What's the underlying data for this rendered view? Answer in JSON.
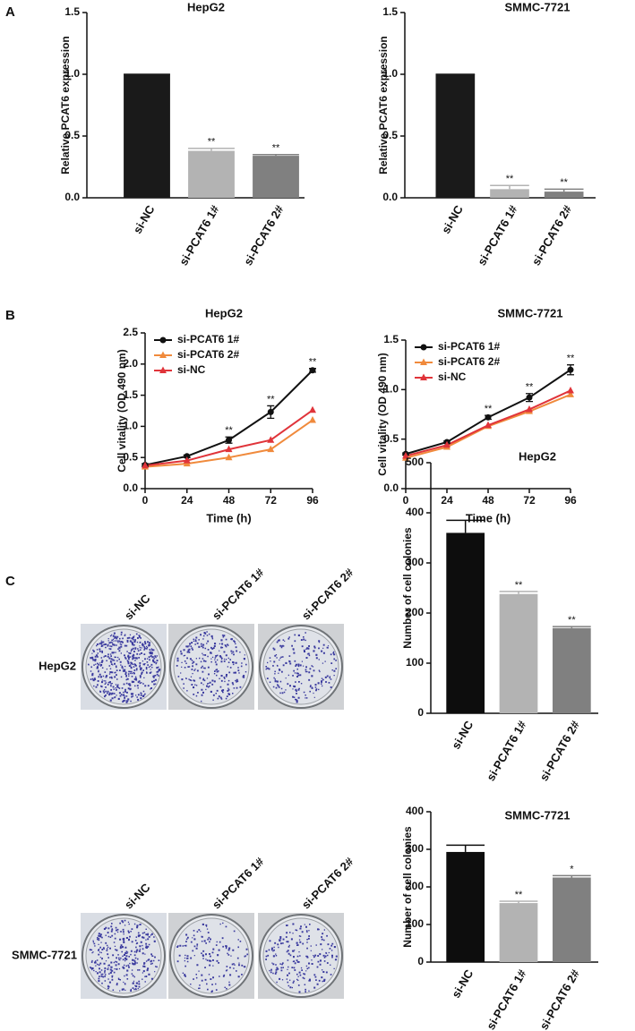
{
  "panel_labels": [
    "A",
    "B",
    "C"
  ],
  "plates": {
    "columns": [
      "si-NC",
      "si-PCAT6 1#",
      "si-PCAT6 2#"
    ],
    "rows": [
      "HepG2",
      "SMMC-7721"
    ]
  },
  "chart_data": [
    {
      "type": "bar",
      "title": "HepG2",
      "y_label": "Relative PCAT6 expression",
      "categories": [
        "si-NC",
        "si-PCAT6 1#",
        "si-PCAT6 2#"
      ],
      "values": [
        1,
        0.38,
        0.34
      ],
      "errors": [
        0,
        0.02,
        0.01
      ],
      "colors": [
        "#1a1a1a",
        "#b3b3b3",
        "#808080"
      ],
      "annotations": [
        null,
        "**",
        "**"
      ],
      "ylim": [
        0,
        1.5
      ],
      "yticks": [
        {
          "value": 0,
          "label": "0.0"
        },
        0.5,
        {
          "value": 1,
          "label": "1.0"
        },
        1.5
      ]
    },
    {
      "type": "bar",
      "title": "SMMC-7721",
      "y_label": "Relative PCAT6 expression",
      "categories": [
        "si-NC",
        "si-PCAT6 1#",
        "si-PCAT6 2#"
      ],
      "values": [
        1,
        0.07,
        0.05
      ],
      "errors": [
        0,
        0.03,
        0.02
      ],
      "colors": [
        "#1a1a1a",
        "#b3b3b3",
        "#808080"
      ],
      "annotations": [
        null,
        "**",
        "**"
      ],
      "ylim": [
        0,
        1.5
      ],
      "yticks": [
        {
          "value": 0,
          "label": "0.0"
        },
        0.5,
        {
          "value": 1,
          "label": "1.0"
        },
        1.5
      ]
    },
    {
      "type": "line",
      "title": "HepG2",
      "x_label": "Time (h)",
      "y_label": "Cell vitality (OD 490 nm)",
      "x": [
        0,
        24,
        48,
        72,
        96
      ],
      "legend": "upper left",
      "series": [
        {
          "name": "si-PCAT6 1#",
          "color": "#111111",
          "marker": "circle",
          "values": [
            0.38,
            0.52,
            0.78,
            1.23,
            1.9
          ],
          "errors": [
            0.02,
            0.02,
            0.05,
            0.1,
            0.03
          ]
        },
        {
          "name": "si-PCAT6 2#",
          "color": "#f08a3c",
          "marker": "triangle",
          "values": [
            0.35,
            0.4,
            0.5,
            0.63,
            1.1
          ]
        },
        {
          "name": "si-NC",
          "color": "#e0343a",
          "marker": "triangle",
          "values": [
            0.37,
            0.45,
            0.63,
            0.78,
            1.26
          ]
        }
      ],
      "annotations": [
        null,
        null,
        "**",
        "**",
        "**"
      ],
      "xlim": [
        0,
        96
      ],
      "xticks": [
        0,
        24,
        48,
        72,
        96
      ],
      "ylim": [
        0,
        2.5
      ],
      "yticks": [
        {
          "value": 0,
          "label": "0.0"
        },
        0.5,
        {
          "value": 1,
          "label": "1.0"
        },
        1.5,
        {
          "value": 2,
          "label": "2.0"
        },
        2.5
      ]
    },
    {
      "type": "line",
      "title": "SMMC-7721",
      "x_label": "Time (h)",
      "y_label": "Cell vitality (OD 490 nm)",
      "x": [
        0,
        24,
        48,
        72,
        96
      ],
      "legend": "upper left",
      "series": [
        {
          "name": "si-PCAT6 1#",
          "color": "#111111",
          "marker": "circle",
          "values": [
            0.35,
            0.47,
            0.72,
            0.92,
            1.2
          ],
          "errors": [
            0.01,
            0.01,
            0.02,
            0.04,
            0.05
          ]
        },
        {
          "name": "si-PCAT6 2#",
          "color": "#f08a3c",
          "marker": "triangle",
          "values": [
            0.31,
            0.42,
            0.63,
            0.78,
            0.95
          ]
        },
        {
          "name": "si-NC",
          "color": "#e0343a",
          "marker": "triangle",
          "values": [
            0.33,
            0.44,
            0.64,
            0.8,
            0.99
          ]
        }
      ],
      "annotations": [
        null,
        null,
        "**",
        "**",
        "**"
      ],
      "xlim": [
        0,
        96
      ],
      "xticks": [
        0,
        24,
        48,
        72,
        96
      ],
      "ylim": [
        0,
        1.5
      ],
      "yticks": [
        {
          "value": 0,
          "label": "0.0"
        },
        0.5,
        {
          "value": 1,
          "label": "1.0"
        },
        1.5
      ]
    },
    {
      "type": "bar",
      "title": "HepG2",
      "y_label": "Number of cell colonies",
      "categories": [
        "si-NC",
        "si-PCAT6 1#",
        "si-PCAT6 2#"
      ],
      "values": [
        360,
        238,
        170
      ],
      "errors": [
        25,
        5,
        3
      ],
      "colors": [
        "#0d0d0d",
        "#b3b3b3",
        "#808080"
      ],
      "annotations": [
        null,
        "**",
        "**"
      ],
      "ylim": [
        0,
        500
      ],
      "yticks": [
        0,
        100,
        200,
        300,
        400,
        500
      ]
    },
    {
      "type": "bar",
      "title": "SMMC-7721",
      "y_label": "Number of cell colonies",
      "categories": [
        "si-NC",
        "si-PCAT6 1#",
        "si-PCAT6 2#"
      ],
      "values": [
        293,
        157,
        225
      ],
      "errors": [
        18,
        5,
        5
      ],
      "colors": [
        "#0d0d0d",
        "#b3b3b3",
        "#808080"
      ],
      "annotations": [
        null,
        "**",
        "*"
      ],
      "ylim": [
        0,
        400
      ],
      "yticks": [
        0,
        100,
        200,
        300,
        400
      ]
    }
  ]
}
